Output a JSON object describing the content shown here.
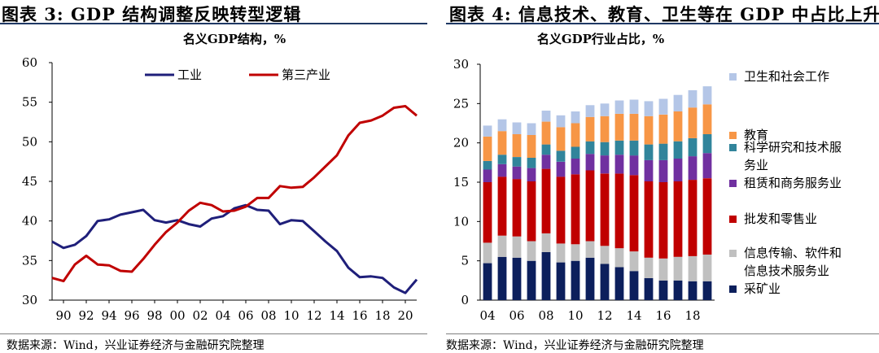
{
  "figures": {
    "left": {
      "caption": "图表 3:  GDP 结构调整反映转型逻辑",
      "source": "数据来源：Wind，兴业证券经济与金融研究院整理"
    },
    "right": {
      "caption": "图表 4:  信息技术、教育、卫生等在 GDP 中占比上升",
      "source": "数据来源：Wind，兴业证券经济与金融研究院整理"
    }
  },
  "chart_data": [
    {
      "type": "line",
      "title": "名义GDP结构，%",
      "xlabel": "",
      "ylabel": "",
      "ylim": [
        30,
        60
      ],
      "yticks": [
        30,
        35,
        40,
        45,
        50,
        55,
        60
      ],
      "x": [
        1989,
        1990,
        1991,
        1992,
        1993,
        1994,
        1995,
        1996,
        1997,
        1998,
        1999,
        2000,
        2001,
        2002,
        2003,
        2004,
        2005,
        2006,
        2007,
        2008,
        2009,
        2010,
        2011,
        2012,
        2013,
        2014,
        2015,
        2016,
        2017,
        2018,
        2019,
        2020,
        2021
      ],
      "xtick_labels": [
        "90",
        "92",
        "94",
        "96",
        "98",
        "00",
        "02",
        "04",
        "06",
        "08",
        "10",
        "12",
        "14",
        "16",
        "18",
        "20"
      ],
      "xtick_years": [
        1990,
        1992,
        1994,
        1996,
        1998,
        2000,
        2002,
        2004,
        2006,
        2008,
        2010,
        2012,
        2014,
        2016,
        2018,
        2020
      ],
      "legend_position": "top",
      "grid": false,
      "series": [
        {
          "name": "工业",
          "color": "#1f1f7a",
          "values": [
            37.4,
            36.6,
            37.0,
            38.1,
            40.0,
            40.2,
            40.8,
            41.1,
            41.4,
            40.1,
            39.8,
            40.1,
            39.6,
            39.3,
            40.3,
            40.6,
            41.6,
            42.0,
            41.4,
            41.3,
            39.6,
            40.1,
            40.0,
            38.7,
            37.4,
            36.2,
            34.1,
            32.9,
            33.0,
            32.8,
            31.6,
            30.9,
            32.6
          ]
        },
        {
          "name": "第三产业",
          "color": "#c00000",
          "values": [
            32.8,
            32.4,
            34.5,
            35.6,
            34.5,
            34.4,
            33.7,
            33.6,
            35.2,
            37.0,
            38.6,
            39.8,
            41.3,
            42.3,
            42.0,
            41.2,
            41.3,
            41.8,
            42.9,
            42.9,
            44.4,
            44.2,
            44.3,
            45.5,
            46.9,
            48.3,
            50.8,
            52.4,
            52.7,
            53.3,
            54.3,
            54.5,
            53.3
          ]
        }
      ]
    },
    {
      "type": "bar",
      "stacked": true,
      "title": "名义GDP行业占比，%",
      "xlabel": "",
      "ylabel": "",
      "ylim": [
        0,
        30
      ],
      "yticks": [
        0,
        5,
        10,
        15,
        20,
        25,
        30
      ],
      "categories": [
        "2004",
        "2005",
        "2006",
        "2007",
        "2008",
        "2009",
        "2010",
        "2011",
        "2012",
        "2013",
        "2014",
        "2015",
        "2016",
        "2017",
        "2018",
        "2019"
      ],
      "xtick_labels": [
        "04",
        "06",
        "08",
        "10",
        "12",
        "14",
        "16",
        "18"
      ],
      "legend_position": "right",
      "grid": false,
      "series": [
        {
          "name": "采矿业",
          "color": "#0c1f5c",
          "values": [
            4.7,
            5.5,
            5.4,
            5.0,
            6.1,
            4.8,
            5.0,
            5.4,
            4.6,
            4.2,
            3.7,
            2.8,
            2.5,
            2.5,
            2.4,
            2.4
          ]
        },
        {
          "name": "信息传输、软件和信息技术服务业",
          "color": "#c0c0c0",
          "values": [
            2.6,
            2.7,
            2.7,
            2.5,
            2.4,
            2.4,
            2.1,
            2.1,
            2.3,
            2.4,
            2.5,
            2.6,
            2.8,
            3.0,
            3.2,
            3.4
          ]
        },
        {
          "name": "批发和零售业",
          "color": "#c00000",
          "values": [
            7.7,
            7.5,
            7.3,
            7.6,
            8.2,
            8.5,
            8.9,
            9.0,
            9.2,
            9.5,
            9.7,
            9.7,
            9.7,
            9.6,
            9.7,
            9.7
          ]
        },
        {
          "name": "租赁和商务服务业",
          "color": "#7030a0",
          "values": [
            1.6,
            1.6,
            1.6,
            1.7,
            1.8,
            1.9,
            2.0,
            2.1,
            2.3,
            2.4,
            2.5,
            2.7,
            2.8,
            2.9,
            3.0,
            3.2
          ]
        },
        {
          "name": "科学研究和技术服务业",
          "color": "#31849b",
          "values": [
            1.1,
            1.2,
            1.2,
            1.3,
            1.3,
            1.4,
            1.5,
            1.6,
            1.7,
            1.8,
            1.9,
            2.0,
            2.1,
            2.2,
            2.3,
            2.4
          ]
        },
        {
          "name": "教育",
          "color": "#f79646",
          "values": [
            3.1,
            3.0,
            2.9,
            2.9,
            2.9,
            3.0,
            3.0,
            3.1,
            3.3,
            3.4,
            3.4,
            3.6,
            3.7,
            3.8,
            3.9,
            3.8
          ]
        },
        {
          "name": "卫生和社会工作",
          "color": "#b4c6e7",
          "values": [
            1.4,
            1.5,
            1.5,
            1.5,
            1.4,
            1.5,
            1.5,
            1.5,
            1.6,
            1.7,
            1.8,
            1.9,
            2.0,
            2.1,
            2.2,
            2.3
          ]
        }
      ]
    }
  ]
}
